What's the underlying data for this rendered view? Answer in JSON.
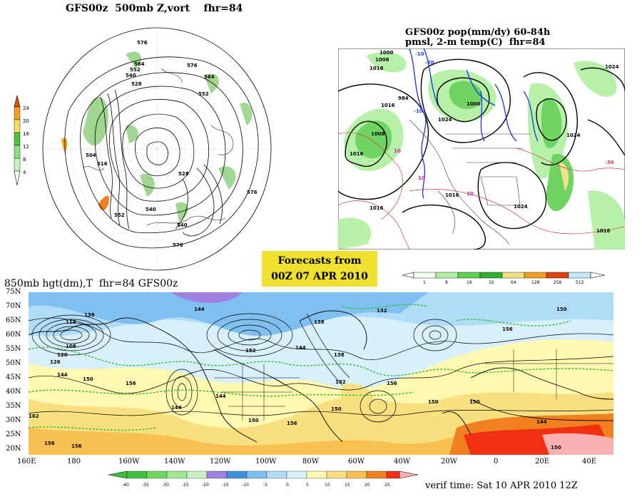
{
  "panel_500mb": {
    "title": "GFS00z  500mb Z,vort    fhr=84",
    "height_labels": [
      "576",
      "564",
      "552",
      "540",
      "528",
      "516",
      "504",
      "552",
      "564",
      "576",
      "540",
      "528",
      "552",
      "576",
      "540",
      "576"
    ],
    "colorbar": {
      "labels": [
        "24",
        "20",
        "16",
        "12",
        "8",
        "4"
      ],
      "colors": [
        "#e05010",
        "#f0a020",
        "#f0e060",
        "#50c040",
        "#90e080",
        "#c8f0c0"
      ]
    }
  },
  "panel_precip": {
    "title_line1": "GFS00z pop(mm/dy) 60-84h",
    "title_line2": "pmsl, 2-m temp(C)  fhr=84",
    "pressure_labels": [
      "1000",
      "1008",
      "1016",
      "1024",
      "984",
      "1000",
      "1008",
      "1016",
      "1024",
      "1016",
      "1024",
      "1016",
      "1016",
      "1024",
      "1016"
    ],
    "temp_labels": [
      "-10",
      "-20",
      "-10",
      "10",
      "10",
      "10",
      "-30"
    ],
    "colorbar": {
      "labels": [
        "1",
        "8",
        "16",
        "32",
        "64",
        "128",
        "256",
        "512"
      ],
      "colors": [
        "#f0fff0",
        "#b0f0a0",
        "#60d050",
        "#30b030",
        "#f0e080",
        "#f0a020",
        "#e04010",
        "#c0e8f8"
      ]
    }
  },
  "banner": {
    "line1": "Forecasts from",
    "line2": "00Z 07 APR 2010"
  },
  "panel_850mb": {
    "title": "850mb hgt(dm),T  fhr=84 GFS00z",
    "lat_labels": [
      "75N",
      "70N",
      "65N",
      "60N",
      "55N",
      "50N",
      "45N",
      "40N",
      "35N",
      "30N",
      "25N",
      "20N"
    ],
    "lon_labels": [
      "160E",
      "180",
      "160W",
      "140W",
      "120W",
      "100W",
      "80W",
      "60W",
      "40W",
      "20W",
      "0",
      "20E",
      "40E"
    ],
    "height_labels": [
      "144",
      "138",
      "114",
      "108",
      "120",
      "126",
      "144",
      "150",
      "156",
      "162",
      "156",
      "156",
      "144",
      "152",
      "144",
      "138",
      "132",
      "156",
      "150",
      "138",
      "132",
      "150",
      "156",
      "144",
      "150",
      "150",
      "156",
      "150",
      "144",
      "150"
    ],
    "temp_colorbar": {
      "labels": [
        "-40",
        "-35",
        "-30",
        "-25",
        "-20",
        "-15",
        "-10",
        "-5",
        "0",
        "5",
        "10",
        "15",
        "20",
        "25"
      ],
      "colors": [
        "#40c040",
        "#70d860",
        "#a0e890",
        "#c8f0c0",
        "#a080e0",
        "#4090e0",
        "#80c0f0",
        "#b0dcf8",
        "#d8f0fc",
        "#fff8b0",
        "#f8e080",
        "#f8c050",
        "#f08020",
        "#f03010",
        "#f8b0b0"
      ]
    },
    "verif_time": "verif time: Sat 10 APR 2010 12Z"
  }
}
